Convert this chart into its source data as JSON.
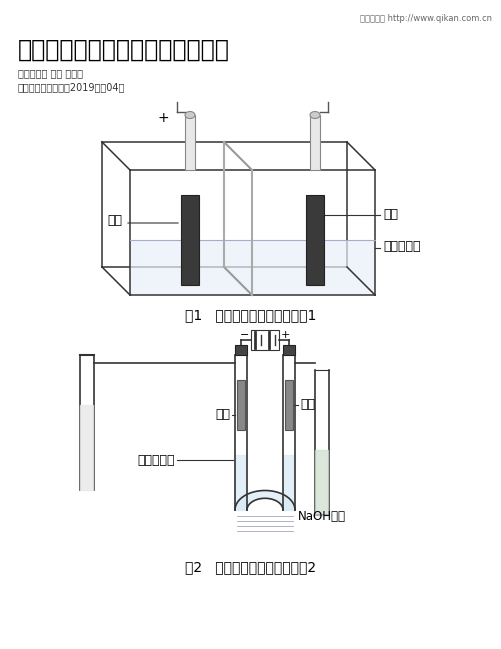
{
  "title": "电解饱和食盐水实验装置的新设计",
  "header_text": "龙源期刊网 http://www.qikan.com.cn",
  "author_text": "作者：平锁 罗兵 唐其生",
  "source_text": "来源：《化学教学》2019年第04期",
  "fig1_caption": "图1   电解饱和食盐水实验装置1",
  "fig2_caption": "图2   电解饱和食盐水实验装置2",
  "label_yangji1": "阳极",
  "label_yinji1": "阴极",
  "label_baohe1": "饱和食盐水",
  "label_yangji2": "阳极",
  "label_yinji2": "阴极",
  "label_baohe2": "饱和食盐水",
  "label_naoh": "NaOH溶液",
  "bg_color": "#ffffff",
  "text_color": "#000000",
  "line_color": "#333333"
}
